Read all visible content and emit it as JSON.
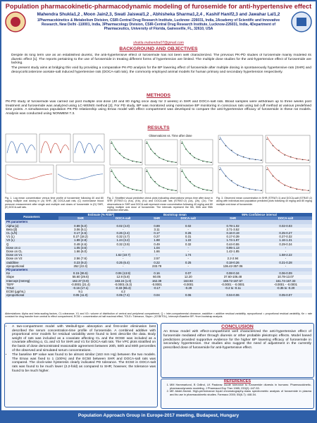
{
  "header": {
    "title": "Population pharmacokinetic-pharmacodynamic modeling of furosemide for anti-hypertensive effect",
    "authors": "Mahendra Shukla1,2 , Moon Jain2,3, Swati Jaiswal1,2 , Abhisheka Sharma1,2,4 , Kashif Hanif2,3 and Jawahar Lal1,2",
    "affiliations": "1Pharmacokinetics & Metabolism Division, CSIR-Central Drug Research Institute, Lucknow -226031, India, 2Academy of Scientific and Innovative Research, New Delhi -110001, India, 3Pharmacology Division, CSIR-Central Drug Research Institute, Lucknow-226031, India, 4Department of Pharmaceutics, University of Florida, Gainesville, FL, 32610, USA",
    "email": "shukla.mahendra07@gmail.com"
  },
  "background": {
    "heading": "BACKGROUND AND OBJECTIVES",
    "bullets": [
      "Despite its long term use as an established diuretic, the anti-hypertensive effect of furosemide has not been well characterized. The previous PK-PD studies of furosemide mainly modeled its diuretic effect [1]. The reports pertaining to the use of furosemide in treating different forms of hypertension are limited. The multiple dose studies for the anti-hypertensive effect of furosemide are lacking.",
      "The present study aims at bridging this void by providing a comparative PK-PD analysis for the BP lowering effect of furosemide after multiple dosing in spontaneously hypertensive rats (SHR) and deoxycorticosterone acetate-salt induced hypertensive rats (DOCA-salt rats), the commonly employed animal models for human primary and secondary hypertension respectively."
    ]
  },
  "methods": {
    "heading": "METHODS",
    "text": "PK-PD study of furosemide was carried out post multiple oral dose (40 and 80 mg/kg once daily for 3 weeks) in SHR and DOCA-salt rats. Blood samples were withdrawn up to three weeks post treatment and furosemide was analyzed using LC-MS/MS method [2]. For PD study, BP was monitored using noninvasive BP monitoring in conscious rats using tail cuff method at various predefined time points. A simultaneous population PK-PD relationship using Emax model with effect compartment was developed to compare the anti-hypertensive efficacy of furosemide in these rat models. Analysis was conducted using NONMEM 7.3."
  },
  "results": {
    "heading": "RESULTS",
    "figure_2_title": "Observations vs. Time after dose",
    "captions": [
      "Fig. 1. Log mean concentration versus time profile of furosemide following 40 and 80 mg/kg multiple oral dosing in (A) SHR, (B) DOCA-salt rats, (C) noninvasive blood pressure measurement after single and multiple oral doses of furosemide in (D) SHR, (E) DOCA-salt rats.",
      "Fig. 2. Stratified visual predictive check plots indicating observations versus time after dose in SHR (STRAT=1) (Ka), (Kb), (Kc) and DOCA-salt rats (STRAT=2) (2a), (2b), (2c). The observations in SHR and DOCA-salt represent mean concentration following 40 mg/kg and 80 mg/kg multiple oral dose of furosemide. The intervals represent the 5th, 50th and 95th prediction intervals.",
      "Fig. 3. Observed mean concentration in SHR (STRAT=1) and DOCA-salt (STRAT=2) along with individual and population predicted plots following 40 mg/kg and 80 mg/kg multiple oral dose of furosemide."
    ],
    "bullets": [
      "A two-compartment model with Weibull-type absorption and first-order elimination best described the serum concentration-time profile of furosemide. A combined additive with proportional error models for residual variability were found to best describe the data. Body weight of rats was included as a covariate affecting CL and the DOSE was included as a covariate affecting α, CL and V2 for SHR and V1 for DOCA-salt rats. The VPC plots stratified on the basis of dose demonstrated reasonable agreement between 20th, 50th and 80th percentiles of the observed and simulated serum concentrations.",
      "The baseline BP value was found to be almost similar (163 mm Hg) between the two models. The Emax was fixed to 1 (100%) and the EC50 between SHR and DOCA-salt rats was compared. The clock-wise hysteresis clearly indicated PD tolerance. The EC50 in DOCA-salt rats was found to be much lower (2.2-fold) as compared to SHR; however, the tolerance was found to be much higher."
    ]
  },
  "table": {
    "header": [
      "Parameters",
      "Estimate (% RSE*)",
      "Bootstrap mean",
      "95% Confidence interval"
    ],
    "subheader": [
      "SHR",
      "DOCA-salt",
      "SHR",
      "DOCA-salt",
      "SHR",
      "DOCA-salt"
    ],
    "rows": [
      [
        "PK parameters"
      ],
      [
        "Alpha (α)",
        "0.89 (6.0)",
        "0.02 (4.0)",
        "0.89",
        "0.02",
        "0.78-1.02",
        "0.02-0.03"
      ],
      [
        "Beta (β)",
        "3.06 (5.1)",
        "-",
        "3.11",
        "-",
        "2.71-3.52",
        "-"
      ],
      [
        "CL (L/h)",
        "0.17 (4.5)",
        "0.26 (2.4)",
        "0.17",
        "0.26",
        "0.16-0.19",
        "0.25-0.27"
      ],
      [
        "V1 (L)",
        "0.27 (18.2)",
        "0.32 (4.7)",
        "0.27",
        "0.31",
        "0.17-0.39",
        "0.27-0.32"
      ],
      [
        "V2 (L)",
        "1.89 (2.8)",
        "1.24 (3.2)",
        "1.88",
        "1.22",
        "1.74-1.97",
        "1.16-1.31"
      ],
      [
        "Q",
        "0.49 (4.6)",
        "0.32 (3.9)",
        "0.49",
        "0.32",
        "0.44-0.55",
        "0.29-0.34"
      ],
      [
        "Dose on α",
        "1.05 (3.6)",
        "-",
        "1.04",
        "-",
        "0.95-1.13",
        "-"
      ],
      [
        "Dose on CL",
        "1.66 (6.0)",
        "-",
        "1.66",
        "-",
        "1.42-1.85",
        "-"
      ],
      [
        "Dose on V1",
        "-",
        "1.62 (10.7)",
        "-",
        "1.74",
        "-",
        "1.58-2.22"
      ],
      [
        "Dose on V2",
        "2.56 (7.6)",
        "-",
        "2.57",
        "-",
        "2.2-2.94",
        "-"
      ],
      [
        "σadditive",
        "0.23 (9.2)",
        "0.25 (6.4)",
        "0.22",
        "0.25",
        "0.18-0.26",
        "0.21-0.28"
      ],
      [
        "σproportional",
        "252 (22.3)",
        "-",
        "233.78",
        "-",
        "136.42-357.06",
        "-"
      ],
      [
        "PD parameters"
      ],
      [
        "Ke",
        "0.15 (36.5)",
        "0.06 (13.9)",
        "0.16",
        "0.07",
        "0.08-0.34",
        "0.06-0.09"
      ],
      [
        "Slope",
        "55.60 (29.6)",
        "12.9 (5.8)",
        "60.05",
        "12.20",
        "37.60-106.48",
        "10.78-13.07"
      ],
      [
        "Intercept (mmHg)",
        "162.37 (0.9)",
        "163.24 (1.0)",
        "162.39",
        "163.93",
        "159.72-167.57",
        "161.74-167.33"
      ],
      [
        "TEFF",
        "-0.0001 (21.4)",
        "-0.0001 (6.3)",
        "-0.0001",
        "-0.0001",
        "-0.0001 - -0.0001",
        "-0.0001 - -0.0001"
      ],
      [
        "TOLE",
        "-0.16 (17.1)",
        "-0.33 (55.3)",
        "-0.17",
        "-0.29",
        "-0.2 to -0.11",
        "-0.35 to -0.20"
      ],
      [
        "EC50 (μg/mL)",
        "9.1",
        "4.2",
        "",
        "",
        "",
        ""
      ],
      [
        "σproportional",
        "0.05 (11.0)",
        "0.05 (7.4)",
        "0.04",
        "0.06",
        "0.04-0.06",
        "0.05-0.07"
      ]
    ],
    "footnote": "Abbreviations: Alpha and beta=scaling factors, CL=clearance, V1 and V2= volume of distribution of central and peripheral compartment, Q = inter-compartmental clearance, σadditive = additive residual variability, σproportional = proportional residual variability, Ke = rate constant for drug transfer from central to effect compartment, EC50 = concentration at half maximal effect, TOLE= Tolerance, Slope= (ICSB/TOL), Intercept=Baseline BP; *from bootstrap analysis."
  },
  "conclusion": {
    "heading": "CONCLUSION",
    "text": "An Emax model with effect-compartment well characterized the anti-hypertensive effect of furosemide mediated either through diuresis or other probable pleiotropic effects. Model based predictions provided supportive evidence for the higher BP lowering efficacy of furosemide in secondary hypertension. Our studies also suggest the need of adjustment in the currently prescribed dose of furosemide for anti-hypertensive effect."
  },
  "references": {
    "heading": "REFERENCES",
    "items": [
      "MM Hammarlund, B Odlind, LK Paalzow. Acute tolerance to furosemide diuresis in humans: Pharmacokinetic-pharmacodynamic modeling. J Pharmacol Exp Ther 1985; 233(2): 447-53.",
      "ME Abdel-Hamid. High-performance liquid chromatography-mass spectrometric analysis of furosemide in plasma and its use in pharmacokinetic studies. Farmaco 2000; 55(6-7): 448-54."
    ]
  },
  "footer": {
    "text": "Population Approach Group in Europe-2017 meeting, Budapest, Hungary"
  }
}
